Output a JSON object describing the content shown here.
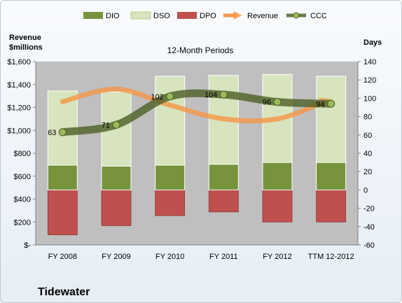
{
  "company": "Tidewater",
  "colors": {
    "dio": "#77933c",
    "dso": "#d7e4bd",
    "dpo": "#c0504d",
    "revenue": "#f79646",
    "ccc": "#4f6228",
    "plot_bg": "#bfbfbf"
  },
  "chart_data": {
    "type": "bar",
    "title": "12-Month Periods",
    "ylabel_left": "Revenue $millions",
    "ylabel_right": "Days",
    "categories": [
      "FY 2008",
      "FY 2009",
      "FY 2010",
      "FY 2011",
      "FY 2012",
      "TTM 12-2012"
    ],
    "left_axis": {
      "ylim": [
        0,
        1600
      ],
      "ticks": [
        0,
        200,
        400,
        600,
        800,
        1000,
        1200,
        1400,
        1600
      ],
      "tick_labels": [
        "$-",
        "$200",
        "$400",
        "$600",
        "$800",
        "$1,000",
        "$1,200",
        "$1,400",
        "$1,600"
      ]
    },
    "right_axis": {
      "ylim": [
        -60,
        140
      ],
      "ticks": [
        -60,
        -40,
        -20,
        0,
        20,
        40,
        60,
        80,
        100,
        120,
        140
      ],
      "tick_labels": [
        "-60",
        "-40",
        "-20",
        "0",
        "20",
        "40",
        "60",
        "80",
        "100",
        "120",
        "140"
      ]
    },
    "legend_position": "top",
    "grid": false,
    "series": [
      {
        "name": "DIO",
        "type": "stacked-bar",
        "axis": "right",
        "values": [
          27,
          26,
          27,
          28,
          30,
          30
        ]
      },
      {
        "name": "DSO",
        "type": "stacked-bar",
        "axis": "right",
        "values": [
          81,
          81,
          97,
          97,
          96,
          94
        ]
      },
      {
        "name": "DPO",
        "type": "negative-bar",
        "axis": "right",
        "values": [
          -49,
          -39,
          -28,
          -24,
          -35,
          -35
        ]
      },
      {
        "name": "Revenue",
        "type": "line",
        "axis": "left",
        "values": [
          1250,
          1360,
          1220,
          1100,
          1100,
          1250
        ]
      },
      {
        "name": "CCC",
        "type": "line",
        "axis": "right",
        "values": [
          63,
          71,
          102,
          104,
          96,
          94
        ],
        "labels": [
          "63",
          "71",
          "102",
          "104",
          "96",
          "94"
        ]
      }
    ]
  }
}
